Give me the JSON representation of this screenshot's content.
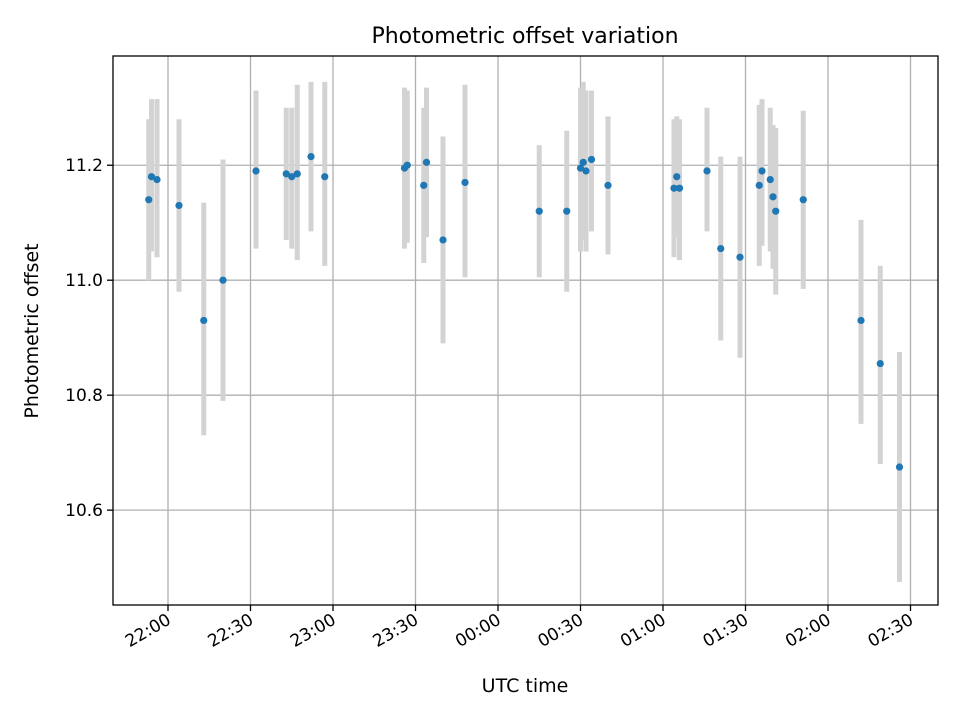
{
  "chart_data": {
    "type": "scatter",
    "title": "Photometric offset variation",
    "xlabel": "UTC time",
    "ylabel": "Photometric offset",
    "xlim": [
      "21:40",
      "02:40"
    ],
    "ylim": [
      10.435,
      11.39
    ],
    "xticks": [
      "22:00",
      "22:30",
      "23:00",
      "23:30",
      "00:00",
      "00:30",
      "01:00",
      "01:30",
      "02:00",
      "02:30"
    ],
    "yticks": [
      10.6,
      10.8,
      11.0,
      11.2
    ],
    "ytick_labels": [
      "10.6",
      "10.8",
      "11.0",
      "11.2"
    ],
    "grid": true,
    "error_bars": true,
    "colors": {
      "points": "#1f77b4",
      "error_bars": "#d3d3d3",
      "grid": "#b0b0b0"
    },
    "points": [
      {
        "x": "21:53",
        "y": 11.14,
        "ylow": 11.0,
        "yhigh": 11.28
      },
      {
        "x": "21:54",
        "y": 11.18,
        "ylow": 11.05,
        "yhigh": 11.315
      },
      {
        "x": "21:56",
        "y": 11.175,
        "ylow": 11.04,
        "yhigh": 11.315
      },
      {
        "x": "22:04",
        "y": 11.13,
        "ylow": 10.98,
        "yhigh": 11.28
      },
      {
        "x": "22:13",
        "y": 10.93,
        "ylow": 10.73,
        "yhigh": 11.135
      },
      {
        "x": "22:20",
        "y": 11.0,
        "ylow": 10.79,
        "yhigh": 11.21
      },
      {
        "x": "22:32",
        "y": 11.19,
        "ylow": 11.055,
        "yhigh": 11.33
      },
      {
        "x": "22:43",
        "y": 11.185,
        "ylow": 11.07,
        "yhigh": 11.3
      },
      {
        "x": "22:45",
        "y": 11.18,
        "ylow": 11.055,
        "yhigh": 11.3
      },
      {
        "x": "22:47",
        "y": 11.185,
        "ylow": 11.035,
        "yhigh": 11.34
      },
      {
        "x": "22:52",
        "y": 11.215,
        "ylow": 11.085,
        "yhigh": 11.345
      },
      {
        "x": "22:57",
        "y": 11.18,
        "ylow": 11.025,
        "yhigh": 11.345
      },
      {
        "x": "23:26",
        "y": 11.195,
        "ylow": 11.055,
        "yhigh": 11.335
      },
      {
        "x": "23:27",
        "y": 11.2,
        "ylow": 11.065,
        "yhigh": 11.33
      },
      {
        "x": "23:33",
        "y": 11.165,
        "ylow": 11.03,
        "yhigh": 11.3
      },
      {
        "x": "23:34",
        "y": 11.205,
        "ylow": 11.075,
        "yhigh": 11.335
      },
      {
        "x": "23:40",
        "y": 11.07,
        "ylow": 10.89,
        "yhigh": 11.25
      },
      {
        "x": "23:48",
        "y": 11.17,
        "ylow": 11.005,
        "yhigh": 11.34
      },
      {
        "x": "00:15",
        "y": 11.12,
        "ylow": 11.005,
        "yhigh": 11.235
      },
      {
        "x": "00:25",
        "y": 11.12,
        "ylow": 10.98,
        "yhigh": 11.26
      },
      {
        "x": "00:30",
        "y": 11.195,
        "ylow": 11.05,
        "yhigh": 11.335
      },
      {
        "x": "00:31",
        "y": 11.205,
        "ylow": 11.07,
        "yhigh": 11.345
      },
      {
        "x": "00:32",
        "y": 11.19,
        "ylow": 11.05,
        "yhigh": 11.33
      },
      {
        "x": "00:34",
        "y": 11.21,
        "ylow": 11.085,
        "yhigh": 11.33
      },
      {
        "x": "00:40",
        "y": 11.165,
        "ylow": 11.045,
        "yhigh": 11.285
      },
      {
        "x": "01:04",
        "y": 11.16,
        "ylow": 11.04,
        "yhigh": 11.28
      },
      {
        "x": "01:05",
        "y": 11.18,
        "ylow": 11.075,
        "yhigh": 11.285
      },
      {
        "x": "01:06",
        "y": 11.16,
        "ylow": 11.035,
        "yhigh": 11.28
      },
      {
        "x": "01:16",
        "y": 11.19,
        "ylow": 11.085,
        "yhigh": 11.3
      },
      {
        "x": "01:21",
        "y": 11.055,
        "ylow": 10.895,
        "yhigh": 11.215
      },
      {
        "x": "01:28",
        "y": 11.04,
        "ylow": 10.865,
        "yhigh": 11.215
      },
      {
        "x": "01:35",
        "y": 11.165,
        "ylow": 11.025,
        "yhigh": 11.305
      },
      {
        "x": "01:36",
        "y": 11.19,
        "ylow": 11.06,
        "yhigh": 11.315
      },
      {
        "x": "01:39",
        "y": 11.175,
        "ylow": 11.05,
        "yhigh": 11.3
      },
      {
        "x": "01:40",
        "y": 11.145,
        "ylow": 11.02,
        "yhigh": 11.27
      },
      {
        "x": "01:41",
        "y": 11.12,
        "ylow": 10.975,
        "yhigh": 11.265
      },
      {
        "x": "01:51",
        "y": 11.14,
        "ylow": 10.985,
        "yhigh": 11.295
      },
      {
        "x": "02:12",
        "y": 10.93,
        "ylow": 10.75,
        "yhigh": 11.105
      },
      {
        "x": "02:19",
        "y": 10.855,
        "ylow": 10.68,
        "yhigh": 11.025
      },
      {
        "x": "02:26",
        "y": 10.675,
        "ylow": 10.475,
        "yhigh": 10.875
      }
    ]
  }
}
